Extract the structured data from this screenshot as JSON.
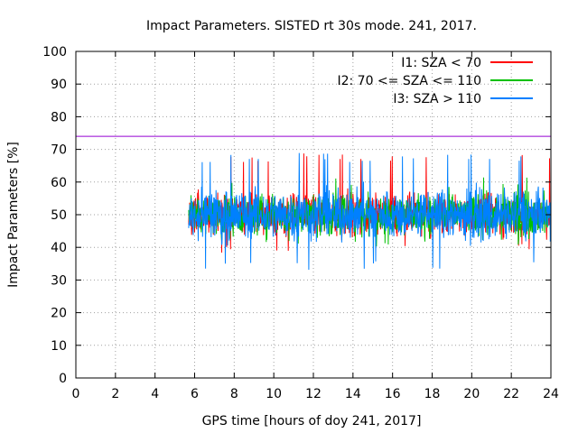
{
  "chart_data": {
    "type": "line",
    "title": "Impact Parameters. SISTED rt 30s mode. 241, 2017.",
    "xlabel": "GPS time [hours of doy 241, 2017]",
    "ylabel": "Impact Parameters [%]",
    "xlim": [
      0,
      24
    ],
    "ylim": [
      0,
      100
    ],
    "xticks": [
      0,
      2,
      4,
      6,
      8,
      10,
      12,
      14,
      16,
      18,
      20,
      22,
      24
    ],
    "yticks": [
      0,
      10,
      20,
      30,
      40,
      50,
      60,
      70,
      80,
      90,
      100
    ],
    "grid": true,
    "legend_position": "top-right",
    "threshold": {
      "y": 74,
      "color": "#9400d3"
    },
    "data_x_range": [
      5.7,
      24
    ],
    "series": [
      {
        "name": "I1: SZA < 70",
        "color": "#ff0000",
        "mean": 50,
        "range": [
          38,
          69
        ],
        "typical_band": [
          42,
          60
        ]
      },
      {
        "name": "I2: 70 <= SZA <= 110",
        "color": "#00c000",
        "mean": 50,
        "range": [
          40,
          62
        ],
        "typical_band": [
          42,
          60
        ]
      },
      {
        "name": "I3: SZA > 110",
        "color": "#0080ff",
        "mean": 50,
        "range": [
          33,
          69
        ],
        "typical_band": [
          40,
          62
        ]
      }
    ]
  }
}
